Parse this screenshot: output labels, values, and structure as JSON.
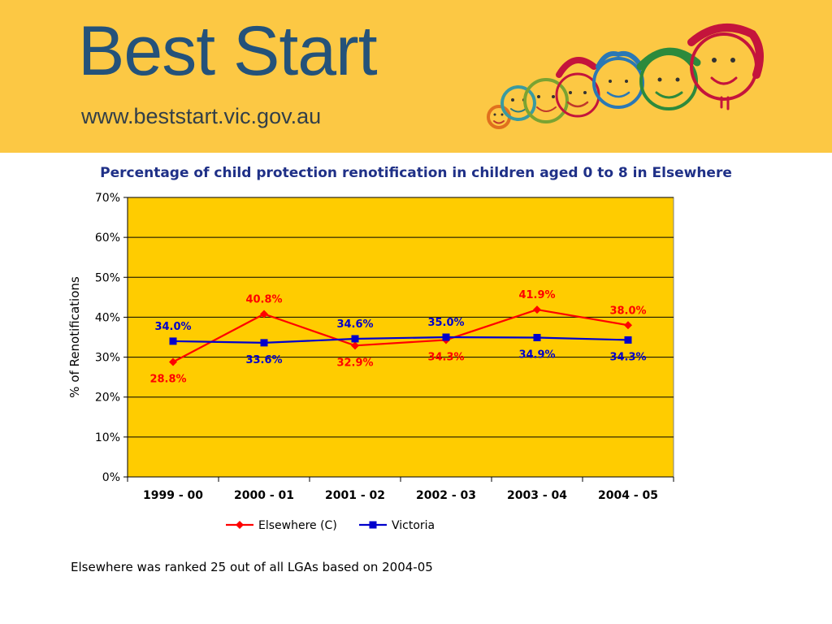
{
  "header": {
    "title": "Best Start",
    "url": "www.beststart.vic.gov.au",
    "colors": {
      "background": "#fcc844",
      "title": "#24527a"
    }
  },
  "chart_data": {
    "type": "line",
    "title": "Percentage of child protection renotification in children aged 0 to 8 in Elsewhere",
    "ylabel": "% of Renotifications",
    "xlabel": "",
    "categories": [
      "1999 - 00",
      "2000 - 01",
      "2001 - 02",
      "2002 - 03",
      "2003 - 04",
      "2004 - 05"
    ],
    "ylim": [
      0,
      70
    ],
    "yticks": [
      0,
      10,
      20,
      30,
      40,
      50,
      60,
      70
    ],
    "ytick_labels": [
      "0%",
      "10%",
      "20%",
      "30%",
      "40%",
      "50%",
      "60%",
      "70%"
    ],
    "grid": true,
    "plot_background": "#ffcc00",
    "legend": "bottom",
    "series": [
      {
        "name": "Elsewhere (C)",
        "color": "#ff0000",
        "marker": "diamond",
        "values": [
          28.8,
          40.8,
          32.9,
          34.3,
          41.9,
          38.0
        ],
        "labels": [
          "28.8%",
          "40.8%",
          "32.9%",
          "34.3%",
          "41.9%",
          "38.0%"
        ]
      },
      {
        "name": "Victoria",
        "color": "#0000cc",
        "marker": "square",
        "values": [
          34.0,
          33.6,
          34.6,
          35.0,
          34.9,
          34.3
        ],
        "labels": [
          "34.0%",
          "33.6%",
          "34.6%",
          "35.0%",
          "34.9%",
          "34.3%"
        ]
      }
    ]
  },
  "footnote": "Elsewhere was ranked 25 out of all LGAs based on 2004-05"
}
